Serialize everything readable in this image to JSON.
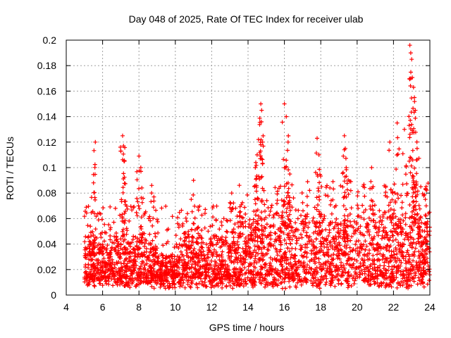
{
  "chart_data": {
    "type": "scatter",
    "title": "Day 048 of 2025, Rate Of TEC Index for receiver ulab",
    "xlabel": "GPS time / hours",
    "ylabel": "ROTI / TECUs",
    "xlim": [
      4,
      24
    ],
    "ylim": [
      0,
      0.2
    ],
    "x_ticks": [
      4,
      6,
      8,
      10,
      12,
      14,
      16,
      18,
      20,
      22,
      24
    ],
    "y_ticks": [
      0,
      0.02,
      0.04,
      0.06,
      0.08,
      0.1,
      0.12,
      0.14,
      0.16,
      0.18,
      0.2
    ],
    "x_tick_labels": [
      "4",
      "6",
      "8",
      "10",
      "12",
      "14",
      "16",
      "18",
      "20",
      "22",
      "24"
    ],
    "y_tick_labels": [
      "0",
      "0.02",
      "0.04",
      "0.06",
      "0.08",
      "0.1",
      "0.12",
      "0.14",
      "0.16",
      "0.18",
      "0.2"
    ],
    "grid": true,
    "marker": "plus",
    "color": "#ff0000",
    "x_data_range": [
      5.0,
      24.0
    ],
    "typical_band": [
      0.005,
      0.06
    ],
    "notable_points": [
      {
        "x": 5.6,
        "y": 0.12
      },
      {
        "x": 5.5,
        "y": 0.088
      },
      {
        "x": 7.1,
        "y": 0.125
      },
      {
        "x": 7.15,
        "y": 0.117
      },
      {
        "x": 7.2,
        "y": 0.105
      },
      {
        "x": 8.0,
        "y": 0.109
      },
      {
        "x": 8.1,
        "y": 0.1
      },
      {
        "x": 8.7,
        "y": 0.086
      },
      {
        "x": 11.0,
        "y": 0.09
      },
      {
        "x": 13.1,
        "y": 0.08
      },
      {
        "x": 14.4,
        "y": 0.1
      },
      {
        "x": 14.5,
        "y": 0.11
      },
      {
        "x": 14.7,
        "y": 0.15
      },
      {
        "x": 14.75,
        "y": 0.145
      },
      {
        "x": 14.8,
        "y": 0.12
      },
      {
        "x": 16.0,
        "y": 0.15
      },
      {
        "x": 16.1,
        "y": 0.14
      },
      {
        "x": 16.2,
        "y": 0.12
      },
      {
        "x": 16.3,
        "y": 0.095
      },
      {
        "x": 17.8,
        "y": 0.123
      },
      {
        "x": 17.9,
        "y": 0.11
      },
      {
        "x": 19.3,
        "y": 0.125
      },
      {
        "x": 19.35,
        "y": 0.115
      },
      {
        "x": 19.4,
        "y": 0.1
      },
      {
        "x": 20.8,
        "y": 0.1
      },
      {
        "x": 21.8,
        "y": 0.12
      },
      {
        "x": 22.2,
        "y": 0.135
      },
      {
        "x": 22.6,
        "y": 0.13
      },
      {
        "x": 22.9,
        "y": 0.196
      },
      {
        "x": 22.95,
        "y": 0.19
      },
      {
        "x": 23.0,
        "y": 0.185
      },
      {
        "x": 23.1,
        "y": 0.163
      },
      {
        "x": 23.15,
        "y": 0.155
      },
      {
        "x": 23.2,
        "y": 0.145
      },
      {
        "x": 23.3,
        "y": 0.115
      },
      {
        "x": 23.5,
        "y": 0.085
      },
      {
        "x": 23.8,
        "y": 0.07
      }
    ]
  }
}
